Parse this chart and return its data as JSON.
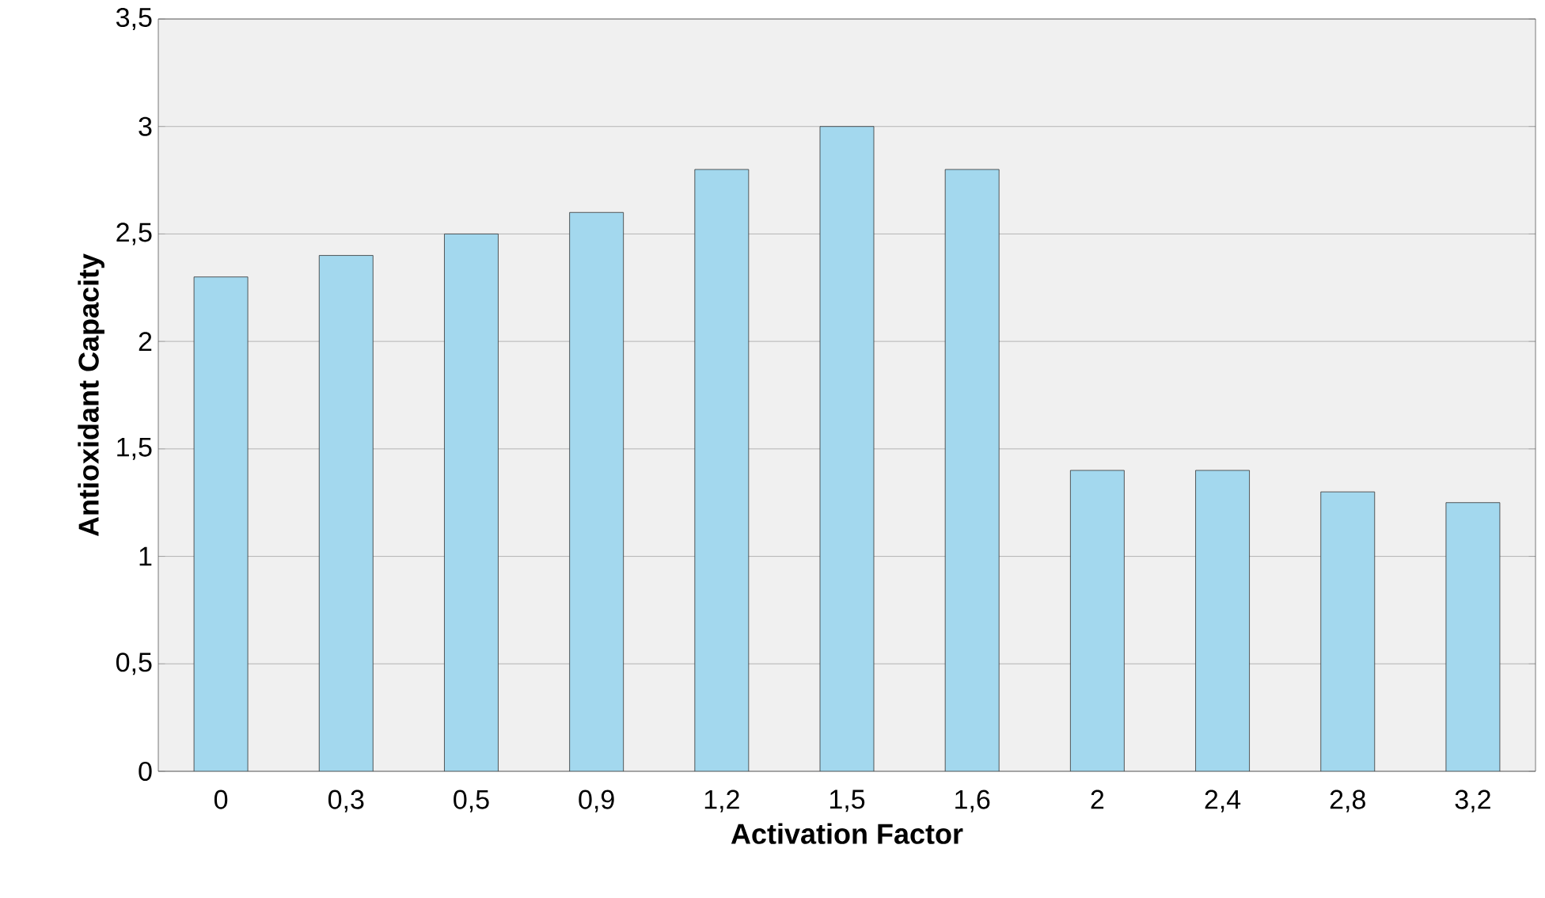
{
  "chart_data": {
    "type": "bar",
    "xlabel": "Activation Factor",
    "ylabel": "Antioxidant Capacity",
    "categories": [
      "0",
      "0,3",
      "0,5",
      "0,9",
      "1,2",
      "1,5",
      "1,6",
      "2",
      "2,4",
      "2,8",
      "3,2"
    ],
    "values": [
      2.3,
      2.4,
      2.5,
      2.6,
      2.8,
      3.0,
      2.8,
      1.4,
      1.4,
      1.3,
      1.25
    ],
    "color": "#a3d8ee",
    "ylim": [
      0,
      3.5
    ],
    "yticks": [
      0,
      {
        "value": 0.5,
        "label": "0,5"
      },
      1,
      {
        "value": 1.5,
        "label": "1,5"
      },
      2,
      {
        "value": 2.5,
        "label": "2,5"
      },
      3,
      {
        "value": 3.5,
        "label": "3,5"
      }
    ],
    "grid": "y"
  }
}
